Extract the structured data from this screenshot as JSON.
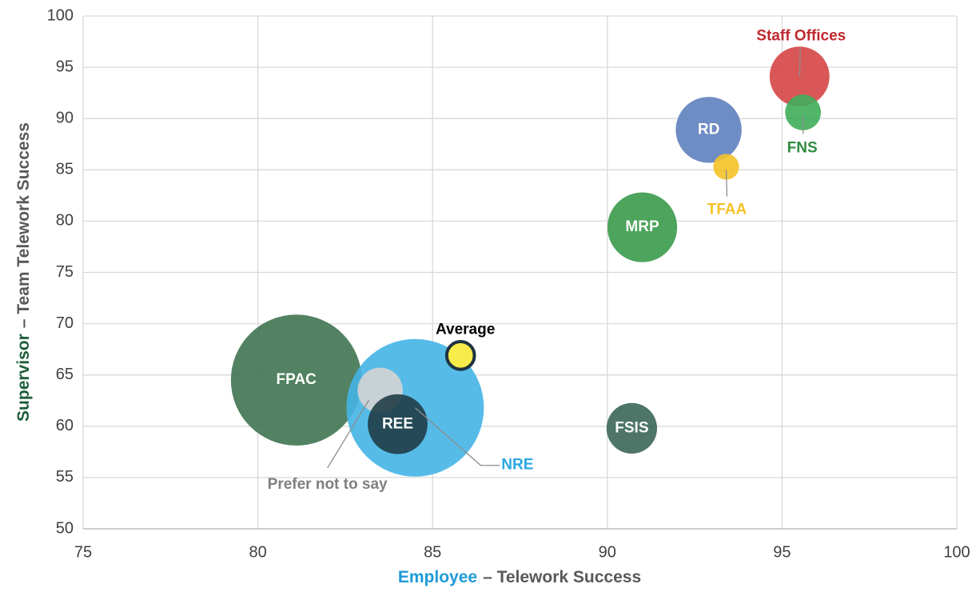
{
  "chart_data": {
    "type": "bubble",
    "xlabel": [
      "Employee",
      "– Telework Success"
    ],
    "xlabel_colors": [
      "#1e9bd7",
      "#595959"
    ],
    "ylabel": [
      "Supervisor",
      "– Team Telework Success"
    ],
    "ylabel_colors": [
      "#1e5e3a",
      "#595959"
    ],
    "xlim": [
      75,
      100
    ],
    "xticks": [
      75,
      80,
      85,
      90,
      95,
      100
    ],
    "ylim": [
      50,
      100
    ],
    "yticks": [
      50,
      55,
      60,
      65,
      70,
      75,
      80,
      85,
      90,
      95,
      100
    ],
    "grid": true,
    "points": [
      {
        "name": "FPAC",
        "x": 81.1,
        "y": 64.5,
        "size": 67,
        "color": "#3f7450",
        "label_color": "#ffffff"
      },
      {
        "name": "NRE",
        "x": 84.5,
        "y": 61.8,
        "size": 74,
        "color": "#45b4e6",
        "label_color": "#29a8e0"
      },
      {
        "name": "Prefer not to say",
        "x": 83.5,
        "y": 63.5,
        "size": 8,
        "color": "#d4d4d4",
        "label_color": "#7f7f7f"
      },
      {
        "name": "REE",
        "x": 84.0,
        "y": 60.2,
        "size": 14,
        "color": "#203d47",
        "label_color": "#ffffff"
      },
      {
        "name": "Average",
        "x": 85.8,
        "y": 66.9,
        "size": 3,
        "color": "#f7ec4a",
        "label_color": "#000000"
      },
      {
        "name": "FSIS",
        "x": 90.7,
        "y": 59.8,
        "size": 10,
        "color": "#3b6656",
        "label_color": "#ffffff"
      },
      {
        "name": "MRP",
        "x": 91.0,
        "y": 79.4,
        "size": 19,
        "color": "#3a9a4b",
        "label_color": "#ffffff"
      },
      {
        "name": "RD",
        "x": 92.9,
        "y": 88.9,
        "size": 17,
        "color": "#5f81bf",
        "label_color": "#ffffff"
      },
      {
        "name": "TFAA",
        "x": 93.4,
        "y": 85.3,
        "size": 2.6,
        "color": "#f5c227",
        "label_color": "#f5c227"
      },
      {
        "name": "Staff Offices",
        "x": 95.5,
        "y": 94.1,
        "size": 14,
        "color": "#d64545",
        "label_color": "#c0282f"
      },
      {
        "name": "FNS",
        "x": 95.6,
        "y": 90.6,
        "size": 5,
        "color": "#3fae5a",
        "label_color": "#2e8b3e"
      }
    ]
  }
}
